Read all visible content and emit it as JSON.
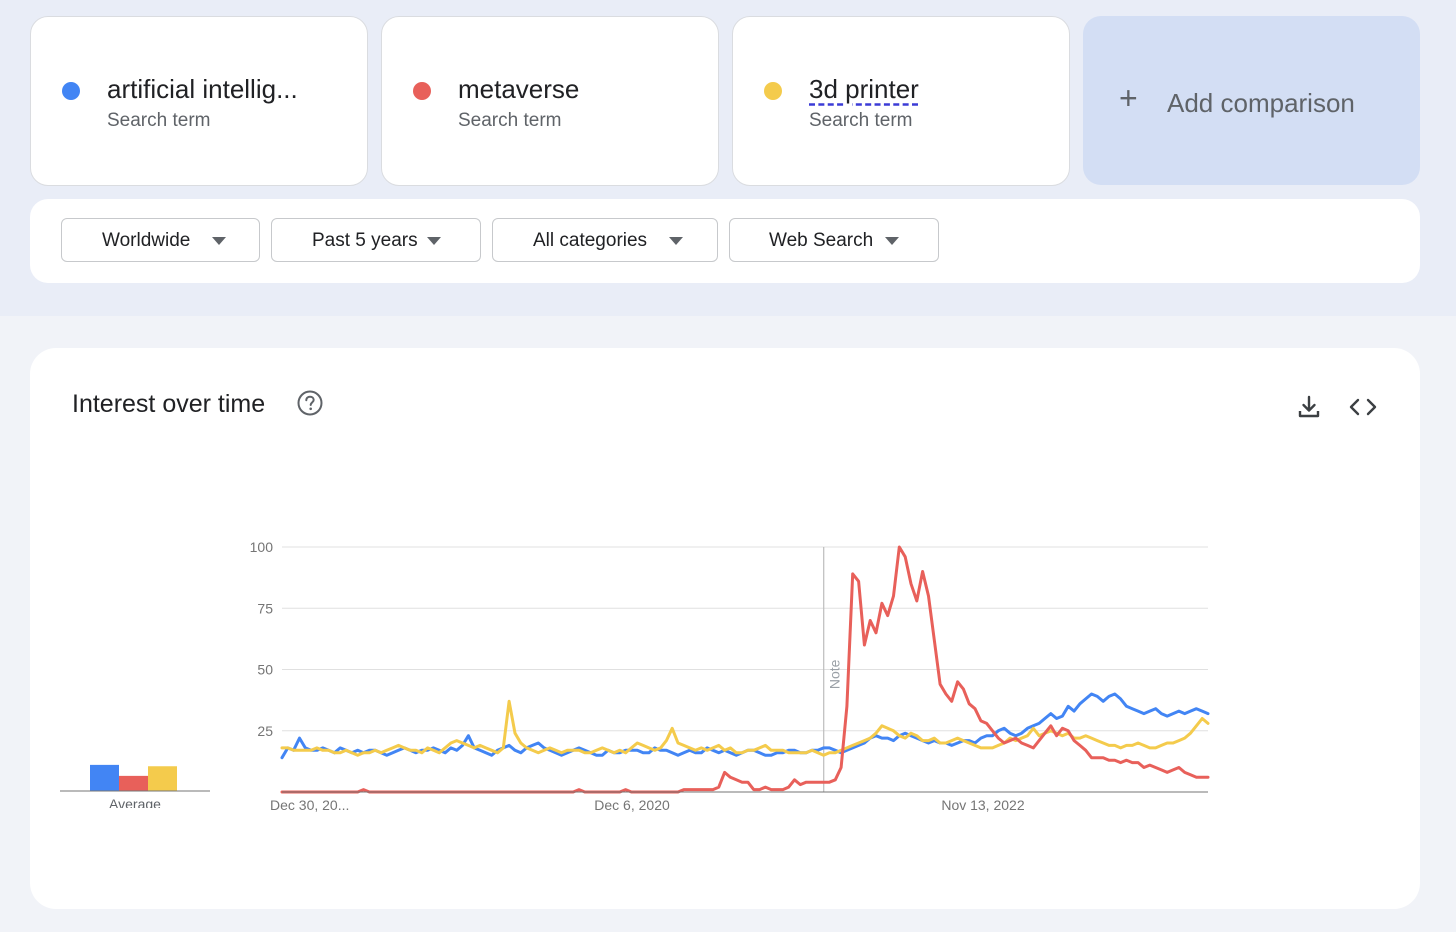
{
  "search_terms": [
    {
      "term": "artificial intellig...",
      "subtitle": "Search term",
      "color": "#4285f4"
    },
    {
      "term": "metaverse",
      "subtitle": "Search term",
      "color": "#e8605a"
    },
    {
      "term": "3d printer",
      "subtitle": "Search term",
      "color": "#f4cb4c"
    }
  ],
  "add_comparison": {
    "icon": "plus-icon",
    "label": "Add comparison"
  },
  "filters": [
    {
      "label": "Worldwide"
    },
    {
      "label": "Past 5 years"
    },
    {
      "label": "All categories"
    },
    {
      "label": "Web Search"
    }
  ],
  "panel": {
    "title": "Interest over time",
    "help_icon": "help-circle-icon",
    "download_icon": "download-icon",
    "embed_icon": "code-embed-icon"
  },
  "average": {
    "label": "Average",
    "values": [
      19,
      11,
      18
    ]
  },
  "chart_data": {
    "type": "line",
    "ylim": [
      0,
      100
    ],
    "yticks": [
      100,
      75,
      50,
      25
    ],
    "xtick_labels": [
      "Dec 30, 20...",
      "Dec 6, 2020",
      "Nov 13, 2022"
    ],
    "annotation": "Note",
    "grid": true,
    "series": [
      {
        "name": "artificial intellig...",
        "color": "#4285f4",
        "values": [
          14,
          18,
          17,
          22,
          18,
          17,
          17,
          18,
          17,
          16,
          18,
          17,
          16,
          17,
          16,
          17,
          17,
          16,
          15,
          16,
          17,
          18,
          17,
          16,
          17,
          17,
          18,
          17,
          16,
          18,
          17,
          19,
          23,
          18,
          17,
          16,
          15,
          17,
          18,
          19,
          17,
          16,
          18,
          19,
          20,
          18,
          17,
          16,
          15,
          16,
          17,
          18,
          17,
          16,
          15,
          15,
          17,
          16,
          16,
          17,
          17,
          17,
          16,
          16,
          18,
          17,
          17,
          16,
          15,
          16,
          17,
          16,
          16,
          18,
          17,
          16,
          17,
          16,
          15,
          16,
          17,
          17,
          16,
          15,
          15,
          16,
          16,
          17,
          17,
          16,
          16,
          17,
          17,
          18,
          18,
          17,
          16,
          17,
          18,
          19,
          20,
          22,
          23,
          22,
          22,
          21,
          23,
          24,
          23,
          22,
          21,
          20,
          21,
          20,
          20,
          19,
          20,
          21,
          21,
          20,
          22,
          23,
          23,
          25,
          26,
          24,
          23,
          24,
          26,
          27,
          28,
          30,
          32,
          30,
          31,
          35,
          33,
          36,
          38,
          40,
          39,
          37,
          39,
          40,
          38,
          35,
          34,
          33,
          32,
          33,
          34,
          32,
          31,
          32,
          33,
          32,
          33,
          34,
          33,
          32
        ]
      },
      {
        "name": "metaverse",
        "color": "#e8605a",
        "values": [
          0,
          0,
          0,
          0,
          0,
          0,
          0,
          0,
          0,
          0,
          0,
          0,
          0,
          0,
          1,
          0,
          0,
          0,
          0,
          0,
          0,
          0,
          0,
          0,
          0,
          0,
          0,
          0,
          0,
          0,
          0,
          0,
          0,
          0,
          0,
          0,
          0,
          0,
          0,
          0,
          0,
          0,
          0,
          0,
          0,
          0,
          0,
          0,
          0,
          0,
          0,
          1,
          0,
          0,
          0,
          0,
          0,
          0,
          0,
          1,
          0,
          0,
          0,
          0,
          0,
          0,
          0,
          0,
          0,
          1,
          1,
          1,
          1,
          1,
          1,
          2,
          8,
          6,
          5,
          4,
          4,
          1,
          1,
          2,
          1,
          1,
          1,
          2,
          5,
          3,
          4,
          4,
          4,
          4,
          4,
          5,
          10,
          35,
          89,
          86,
          60,
          70,
          65,
          77,
          72,
          80,
          100,
          96,
          85,
          78,
          90,
          80,
          62,
          44,
          40,
          37,
          45,
          42,
          36,
          34,
          29,
          28,
          25,
          22,
          20,
          21,
          22,
          20,
          19,
          18,
          21,
          24,
          27,
          23,
          26,
          25,
          21,
          19,
          17,
          14,
          14,
          14,
          13,
          13,
          12,
          13,
          12,
          12,
          10,
          11,
          10,
          9,
          8,
          9,
          10,
          8,
          7,
          6,
          6,
          6
        ]
      },
      {
        "name": "3d printer",
        "color": "#f4cb4c",
        "values": [
          18,
          18,
          17,
          17,
          17,
          17,
          18,
          17,
          17,
          16,
          16,
          17,
          16,
          15,
          16,
          16,
          17,
          16,
          17,
          18,
          19,
          18,
          17,
          17,
          16,
          18,
          17,
          16,
          18,
          20,
          21,
          20,
          19,
          18,
          19,
          18,
          17,
          16,
          18,
          37,
          24,
          20,
          18,
          17,
          16,
          17,
          18,
          17,
          16,
          17,
          17,
          17,
          16,
          16,
          17,
          18,
          17,
          16,
          17,
          16,
          18,
          20,
          19,
          18,
          17,
          18,
          21,
          26,
          20,
          19,
          18,
          17,
          18,
          17,
          18,
          19,
          17,
          18,
          16,
          16,
          17,
          17,
          18,
          19,
          17,
          17,
          17,
          16,
          16,
          16,
          16,
          17,
          16,
          15,
          16,
          16,
          17,
          18,
          19,
          20,
          21,
          22,
          24,
          27,
          26,
          25,
          23,
          22,
          24,
          23,
          21,
          21,
          22,
          20,
          20,
          21,
          22,
          21,
          20,
          19,
          18,
          18,
          18,
          19,
          20,
          22,
          21,
          22,
          23,
          26,
          23,
          24,
          25,
          24,
          23,
          24,
          22,
          22,
          23,
          22,
          21,
          20,
          19,
          19,
          18,
          19,
          19,
          20,
          19,
          18,
          18,
          19,
          20,
          20,
          21,
          22,
          24,
          27,
          30,
          28
        ]
      }
    ]
  }
}
